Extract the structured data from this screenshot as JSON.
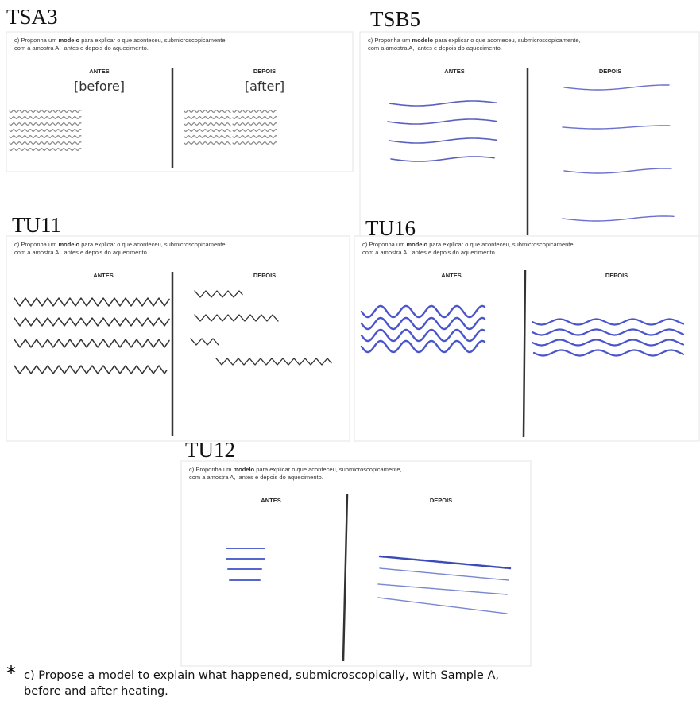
{
  "panels": [
    {
      "label": "TSA3",
      "question": {
        "line1_start": "c) Proponha um ",
        "line1_bold": "modelo",
        "line1_end": " para explicar o que aconteceu, submicroscopicamente,",
        "line2": "com a amostra A,  antes e depois do aquecimento."
      },
      "before": "ANTES",
      "after": "DEPOIS",
      "before_en": "[before]",
      "after_en": "[after]"
    },
    {
      "label": "TSB5",
      "question": {
        "line1_start": "c) Proponha um ",
        "line1_bold": "modelo",
        "line1_end": " para explicar o que aconteceu, submicroscopicamente,",
        "line2": "com a amostra A,  antes e depois do aquecimento."
      },
      "before": "ANTES",
      "after": "DEPOIS"
    },
    {
      "label": "TU11",
      "question": {
        "line1_start": "c) Proponha um ",
        "line1_bold": "modelo",
        "line1_end": " para explicar o que aconteceu, submicroscopicamente,",
        "line2": "com a amostra A,  antes e depois do aquecimento."
      },
      "before": "ANTES",
      "after": "DEPOIS"
    },
    {
      "label": "TU16",
      "question": {
        "line1_start": "c) Proponha um ",
        "line1_bold": "modelo",
        "line1_end": " para explicar o que aconteceu, submicroscopicamente,",
        "line2": "com a amostra A,  antes e depois do aquecimento."
      },
      "before": "ANTES",
      "after": "DEPOIS"
    },
    {
      "label": "TU12",
      "question": {
        "line1_start": "c) Proponha um ",
        "line1_bold": "modelo",
        "line1_end": " para explicar o que aconteceu, submicroscopicamente,",
        "line2": "com a amostra A,  antes e depois do aquecimento."
      },
      "before": "ANTES",
      "after": "DEPOIS"
    }
  ],
  "caption": {
    "marker": "*",
    "line1": "c) Propose a model to explain what happened, submicroscopically, with Sample A,",
    "line2": "before and after heating."
  }
}
